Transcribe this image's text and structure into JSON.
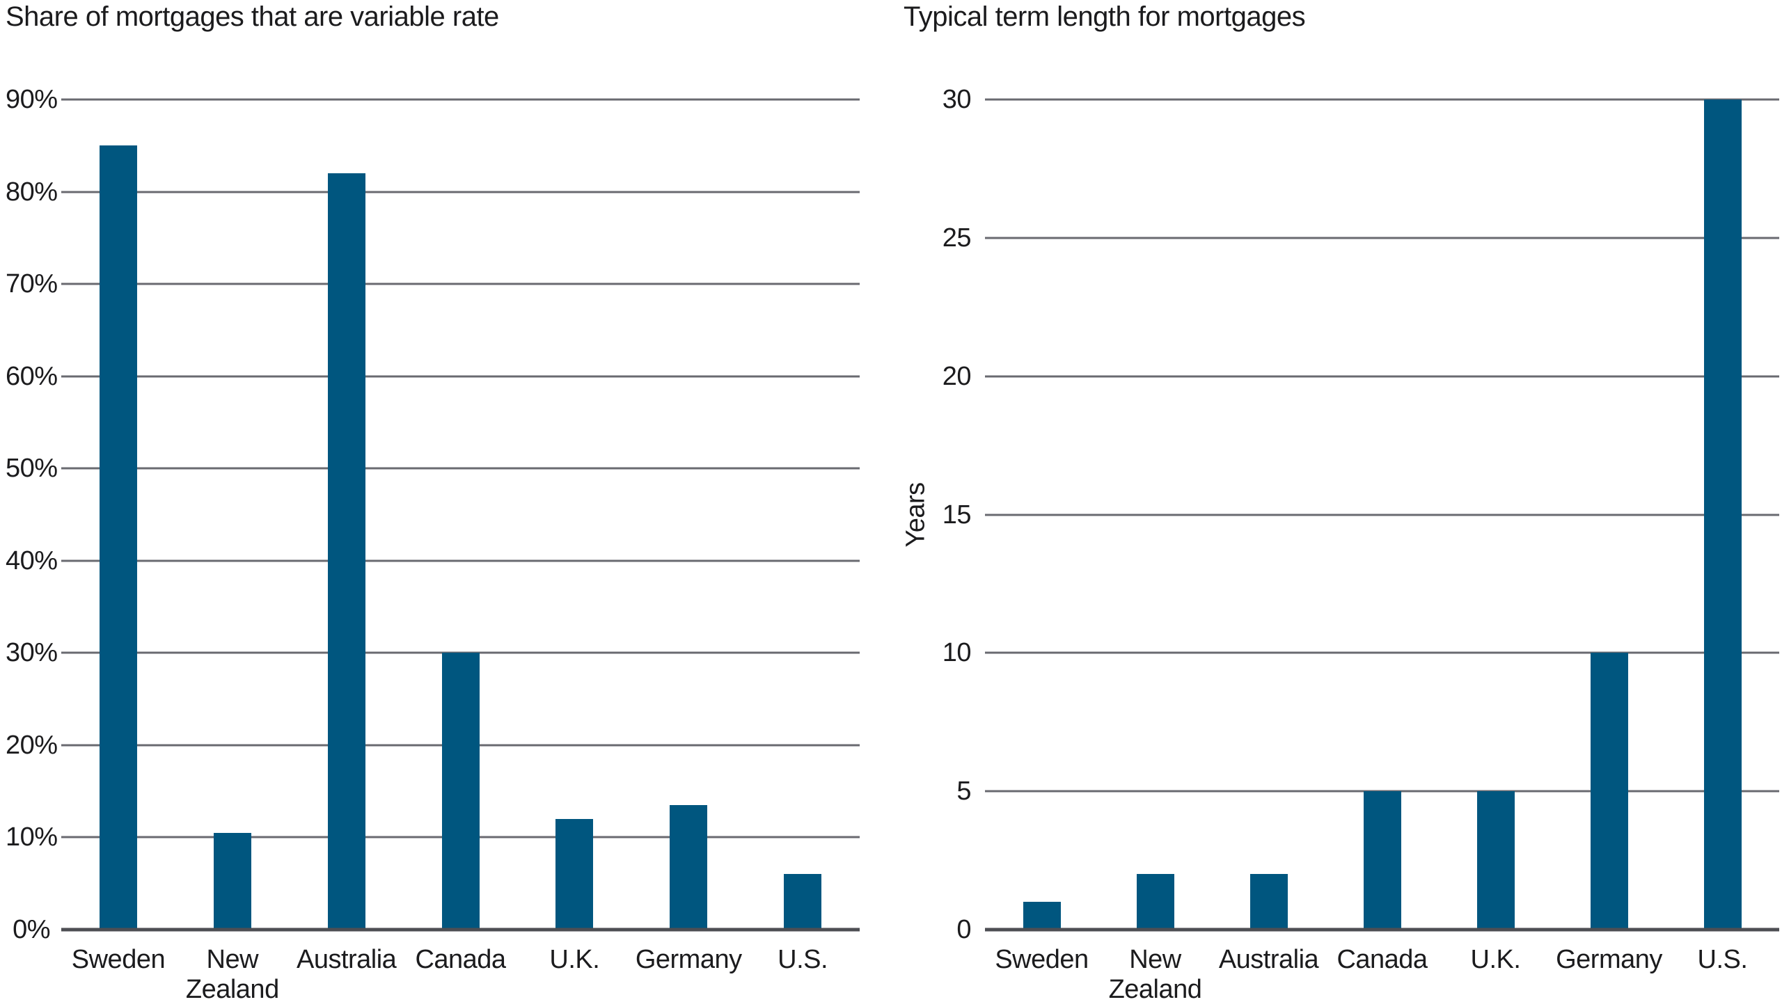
{
  "colors": {
    "bar": "#00567F",
    "gridline": "#696A70",
    "axis_line": "#4D4E53",
    "text": "#1B1B1D",
    "background": "#FFFFFF"
  },
  "chart_data": [
    {
      "type": "bar",
      "title": "Share of mortgages that are variable rate",
      "xlabel": "",
      "ylabel": "",
      "categories": [
        "Sweden",
        "New\nZealand",
        "Australia",
        "Canada",
        "U.K.",
        "Germany",
        "U.S."
      ],
      "values": [
        85,
        10.5,
        82,
        30,
        12,
        13.5,
        6
      ],
      "ylim": [
        0,
        90
      ],
      "ytick_step": 10,
      "ytick_labels": [
        "90%",
        "80%",
        "70%",
        "60%",
        "50%",
        "40%",
        "30%",
        "20%",
        "10%",
        "0%"
      ],
      "grid": "horizontal",
      "legend": "none"
    },
    {
      "type": "bar",
      "title": "Typical term length for mortgages",
      "xlabel": "",
      "ylabel": "Years",
      "categories": [
        "Sweden",
        "New\nZealand",
        "Australia",
        "Canada",
        "U.K.",
        "Germany",
        "U.S."
      ],
      "values": [
        1,
        2,
        2,
        5,
        5,
        10,
        30
      ],
      "ylim": [
        0,
        30
      ],
      "ytick_step": 5,
      "ytick_labels": [
        "30",
        "25",
        "20",
        "15",
        "10",
        "5",
        "0"
      ],
      "grid": "horizontal",
      "legend": "none"
    }
  ]
}
